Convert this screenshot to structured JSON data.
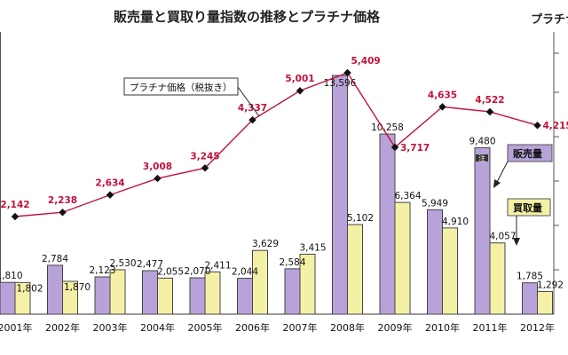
{
  "chart_data": {
    "type": "bar",
    "title": "販売量と買取り量指数の推移とプラチナ価格",
    "right_axis_label": "プラチナ",
    "categories": [
      "2001年",
      "2002年",
      "2003年",
      "2004年",
      "2005年",
      "2006年",
      "2007年",
      "2008年",
      "2009年",
      "2010年",
      "2011年",
      "2012年"
    ],
    "series": [
      {
        "name": "販売量",
        "kind": "bar",
        "color": "#b7a3d9",
        "values": [
          1810,
          2784,
          2123,
          2477,
          2070,
          2044,
          2584,
          13596,
          10258,
          5949,
          9480,
          1785
        ],
        "labels": [
          "1,810",
          "2,784",
          "2,123",
          "2,477",
          "2,070",
          "2,044",
          "2,584",
          "13,596",
          "10,258",
          "5,949",
          "9,480",
          "1,785"
        ]
      },
      {
        "name": "買取量",
        "kind": "bar",
        "color": "#f4f1a6",
        "values": [
          1802,
          1870,
          2530,
          2055,
          2411,
          3629,
          3415,
          5102,
          6364,
          4910,
          4057,
          1292
        ],
        "labels": [
          "1,802",
          "1,870",
          "2,530",
          "2,055",
          "2,411",
          "3,629",
          "3,415",
          "5,102",
          "6,364",
          "4,910",
          "4,057",
          "1,292"
        ]
      },
      {
        "name": "プラチナ価格（税抜き）",
        "kind": "line",
        "color": "#c2123a",
        "values": [
          2142,
          2238,
          2634,
          3008,
          3245,
          4337,
          5001,
          5409,
          3717,
          4635,
          4522,
          4215
        ],
        "labels": [
          "2,142",
          "2,238",
          "2,634",
          "3,008",
          "3,245",
          "4,337",
          "5,001",
          "5,409",
          "3,717",
          "4,635",
          "4,522",
          "4,215"
        ]
      }
    ],
    "legend": {
      "line_callout": "プラチナ価格（税抜き）",
      "sales_box": "販売量",
      "purchase_box": "買取量"
    },
    "note_marker": "注",
    "grid": false
  }
}
